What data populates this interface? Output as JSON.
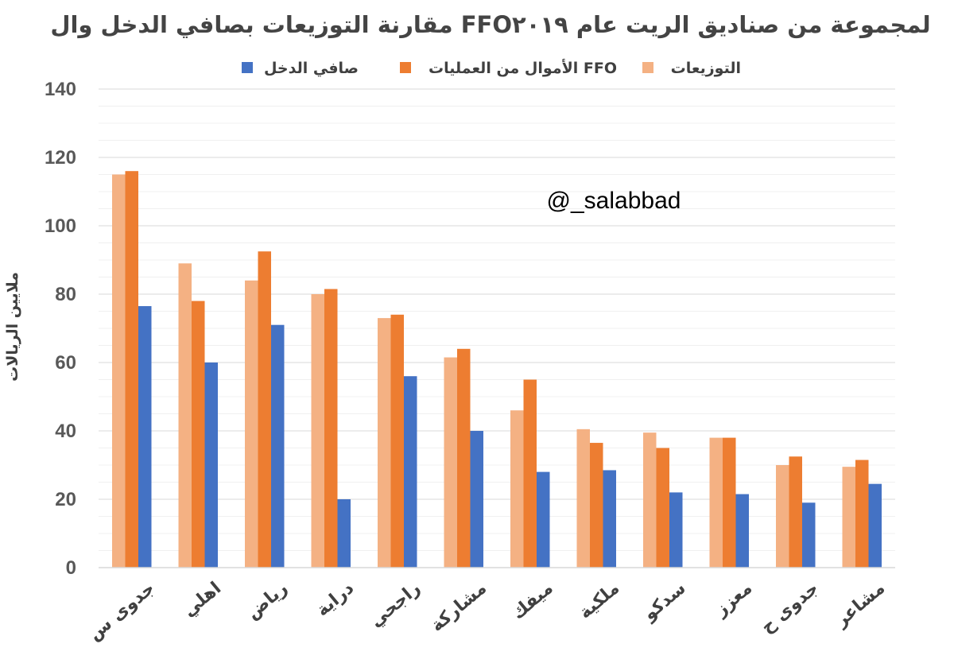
{
  "chart_data": {
    "type": "bar",
    "title": "مقارنة التوزيعات بصافي الدخل وال FFOلمجموعة من صناديق الريت عام ٢٠١٩",
    "ylabel": "ملايين الريالات",
    "xlabel": "",
    "annotation": "@_salabbad",
    "ylim": [
      0,
      140
    ],
    "yticks": [
      0,
      20,
      40,
      60,
      80,
      100,
      120,
      140
    ],
    "grid": true,
    "legend_position": "top",
    "categories": [
      "جدوى س",
      "اهلي",
      "رياض",
      "دراية",
      "راجحي",
      "مشاركة",
      "ميفك",
      "ملكية",
      "سدكو",
      "معزز",
      "جدوى ح",
      "مشاعر"
    ],
    "series": [
      {
        "name": "التوزيعات",
        "color": "#F4B183",
        "values": [
          115,
          89,
          84,
          80,
          73,
          61.5,
          46,
          40.5,
          39.5,
          38,
          30,
          29.5
        ]
      },
      {
        "name": "الأموال من العمليات FFO",
        "color": "#ED7D31",
        "values": [
          116,
          78,
          92.5,
          81.5,
          74,
          64,
          55,
          36.5,
          35,
          38,
          32.5,
          31.5
        ]
      },
      {
        "name": "صافي الدخل",
        "color": "#4472C4",
        "values": [
          76.5,
          60,
          71,
          20,
          56,
          40,
          28,
          28.5,
          22,
          21.5,
          19,
          24.5
        ]
      }
    ]
  }
}
